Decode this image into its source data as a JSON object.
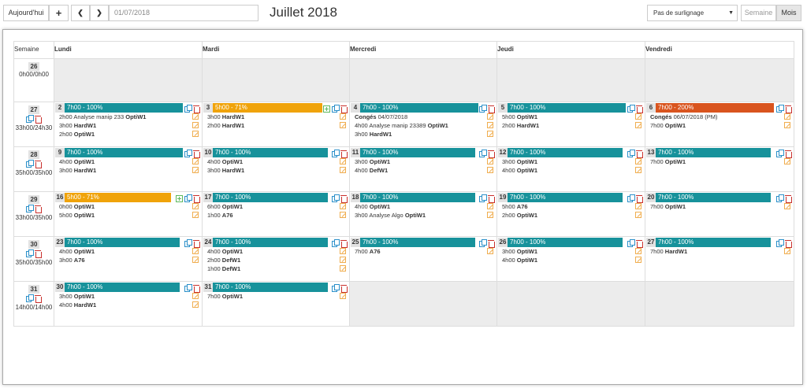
{
  "toolbar": {
    "today_label": "Aujourd'hui",
    "add_icon": "plus-icon",
    "prev_icon": "chevron-left-icon",
    "next_icon": "chevron-right-icon",
    "date_value": "01/07/2018",
    "month_title": "Juillet 2018",
    "highlight_select": "Pas de surlignage",
    "view_week": "Semaine",
    "view_month": "Mois"
  },
  "headers": [
    "Semaine",
    "Lundi",
    "Mardi",
    "Mercredi",
    "Jeudi",
    "Vendredi"
  ],
  "colors": {
    "teal": "#17929b",
    "orange": "#f0a30a",
    "red": "#d9541e"
  },
  "weeks": [
    {
      "num": "26",
      "total": "0h00/0h00",
      "icons": false,
      "days": [
        {
          "empty": true
        },
        {
          "empty": true
        },
        {
          "empty": true
        },
        {
          "empty": true
        },
        {
          "empty": true
        }
      ]
    },
    {
      "num": "27",
      "total": "33h00/24h30",
      "icons": true,
      "days": [
        {
          "num": "2",
          "bar": "7h00 - 100%",
          "color": "teal",
          "plus": false,
          "trash": true,
          "lines": [
            [
              "2h00 Analyse manip 233 ",
              "OptiW1"
            ],
            [
              "3h00 ",
              "HardW1"
            ],
            [
              "2h00 ",
              "OptiW1"
            ]
          ]
        },
        {
          "num": "3",
          "bar": "5h00 - 71%",
          "color": "orange",
          "plus": true,
          "trash": true,
          "lines": [
            [
              "3h00 ",
              "HardW1"
            ],
            [
              "2h00 ",
              "HardW1"
            ]
          ]
        },
        {
          "num": "4",
          "bar": "7h00 - 100%",
          "color": "teal",
          "plus": false,
          "trash": true,
          "lines": [
            [
              "",
              "Congés",
              " 04/07/2018"
            ],
            [
              "4h00 Analyse manip 23389 ",
              "OptiW1"
            ],
            [
              "3h00 ",
              "HardW1"
            ]
          ]
        },
        {
          "num": "5",
          "bar": "7h00 - 100%",
          "color": "teal",
          "plus": false,
          "trash": true,
          "lines": [
            [
              "5h00 ",
              "OptiW1"
            ],
            [
              "2h00 ",
              "HardW1"
            ]
          ]
        },
        {
          "num": "6",
          "bar": "7h00 - 200%",
          "color": "red",
          "plus": false,
          "trash": true,
          "lines": [
            [
              "",
              "Congés",
              " 06/07/2018 (PM)"
            ],
            [
              "7h00 ",
              "OptiW1"
            ]
          ]
        }
      ]
    },
    {
      "num": "28",
      "total": "35h00/35h00",
      "icons": true,
      "days": [
        {
          "num": "9",
          "bar": "7h00 - 100%",
          "color": "teal",
          "plus": false,
          "trash": true,
          "lines": [
            [
              "4h00 ",
              "OptiW1"
            ],
            [
              "3h00 ",
              "HardW1"
            ]
          ]
        },
        {
          "num": "10",
          "bar": "7h00 - 100%",
          "color": "teal",
          "plus": false,
          "trash": true,
          "lines": [
            [
              "4h00 ",
              "OptiW1"
            ],
            [
              "3h00 ",
              "HardW1"
            ]
          ]
        },
        {
          "num": "11",
          "bar": "7h00 - 100%",
          "color": "teal",
          "plus": false,
          "trash": true,
          "lines": [
            [
              "3h00 ",
              "OptiW1"
            ],
            [
              "4h00 ",
              "DefW1"
            ]
          ]
        },
        {
          "num": "12",
          "bar": "7h00 - 100%",
          "color": "teal",
          "plus": false,
          "trash": true,
          "lines": [
            [
              "3h00 ",
              "OptiW1"
            ],
            [
              "4h00 ",
              "OptiW1"
            ]
          ]
        },
        {
          "num": "13",
          "bar": "7h00 - 100%",
          "color": "teal",
          "plus": false,
          "trash": true,
          "lines": [
            [
              "7h00 ",
              "OptiW1"
            ]
          ]
        }
      ]
    },
    {
      "num": "29",
      "total": "33h00/35h00",
      "icons": true,
      "days": [
        {
          "num": "16",
          "bar": "5h00 - 71%",
          "color": "orange",
          "plus": true,
          "trash": true,
          "lines": [
            [
              "0h00 ",
              "OptiW1"
            ],
            [
              "5h00 ",
              "OptiW1"
            ]
          ]
        },
        {
          "num": "17",
          "bar": "7h00 - 100%",
          "color": "teal",
          "plus": false,
          "trash": true,
          "lines": [
            [
              "6h00 ",
              "OptiW1"
            ],
            [
              "1h00 ",
              "A76"
            ]
          ]
        },
        {
          "num": "18",
          "bar": "7h00 - 100%",
          "color": "teal",
          "plus": false,
          "trash": true,
          "lines": [
            [
              "4h00 ",
              "OptiW1"
            ],
            [
              "3h00 Analyse Algo ",
              "OptiW1"
            ]
          ]
        },
        {
          "num": "19",
          "bar": "7h00 - 100%",
          "color": "teal",
          "plus": false,
          "trash": true,
          "lines": [
            [
              "5h00 ",
              "A76"
            ],
            [
              "2h00 ",
              "OptiW1"
            ]
          ]
        },
        {
          "num": "20",
          "bar": "7h00 - 100%",
          "color": "teal",
          "plus": false,
          "trash": true,
          "lines": [
            [
              "7h00 ",
              "OptiW1"
            ]
          ]
        }
      ]
    },
    {
      "num": "30",
      "total": "35h00/35h00",
      "icons": true,
      "days": [
        {
          "num": "23",
          "bar": "7h00 - 100%",
          "color": "teal",
          "plus": false,
          "trash": true,
          "lines": [
            [
              "4h00 ",
              "OptiW1"
            ],
            [
              "3h00 ",
              "A76"
            ]
          ]
        },
        {
          "num": "24",
          "bar": "7h00 - 100%",
          "color": "teal",
          "plus": false,
          "trash": true,
          "lines": [
            [
              "4h00 ",
              "OptiW1"
            ],
            [
              "2h00 ",
              "DefW1"
            ],
            [
              "1h00 ",
              "DefW1"
            ]
          ]
        },
        {
          "num": "25",
          "bar": "7h00 - 100%",
          "color": "teal",
          "plus": false,
          "trash": true,
          "lines": [
            [
              "7h00 ",
              "A76"
            ]
          ]
        },
        {
          "num": "26",
          "bar": "7h00 - 100%",
          "color": "teal",
          "plus": false,
          "trash": true,
          "lines": [
            [
              "3h00 ",
              "OptiW1"
            ],
            [
              "4h00 ",
              "OptiW1"
            ]
          ]
        },
        {
          "num": "27",
          "bar": "7h00 - 100%",
          "color": "teal",
          "plus": false,
          "trash": true,
          "lines": [
            [
              "7h00 ",
              "HardW1"
            ]
          ]
        }
      ]
    },
    {
      "num": "31",
      "total": "14h00/14h00",
      "icons": true,
      "days": [
        {
          "num": "30",
          "bar": "7h00 - 100%",
          "color": "teal",
          "plus": false,
          "trash": true,
          "lines": [
            [
              "3h00 ",
              "OptiW1"
            ],
            [
              "4h00 ",
              "HardW1"
            ]
          ]
        },
        {
          "num": "31",
          "bar": "7h00 - 100%",
          "color": "teal",
          "plus": false,
          "trash": true,
          "lines": [
            [
              "7h00 ",
              "OptiW1"
            ]
          ]
        },
        {
          "empty": true
        },
        {
          "empty": true
        },
        {
          "empty": true
        }
      ]
    }
  ]
}
